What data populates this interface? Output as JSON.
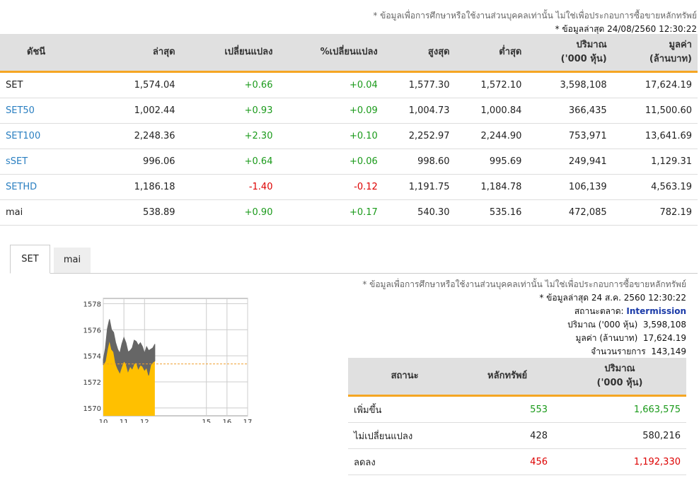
{
  "disclaimer": "* ข้อมูลเพื่อการศึกษาหรือใช้งานส่วนบุคคลเท่านั้น ไม่ใช่เพื่อประกอบการซื้อขายหลักทรัพย์",
  "last_update": "* ข้อมูลล่าสุด 24/08/2560 12:30:22",
  "index_table": {
    "headers": [
      "ดัชนี",
      "ล่าสุด",
      "เปลี่ยนแปลง",
      "%เปลี่ยนแปลง",
      "สูงสุด",
      "ต่ำสุด",
      "ปริมาณ",
      "มูลค่า"
    ],
    "header_subs": {
      "volume": "('000 หุ้น)",
      "value": "(ล้านบาท)"
    },
    "rows": [
      {
        "name": "SET",
        "last": "1,574.04",
        "change": "+0.66",
        "pct": "+0.04",
        "high": "1,577.30",
        "low": "1,572.10",
        "volume": "3,598,108",
        "value": "17,624.19",
        "link": false,
        "dir": "pos"
      },
      {
        "name": "SET50",
        "last": "1,002.44",
        "change": "+0.93",
        "pct": "+0.09",
        "high": "1,004.73",
        "low": "1,000.84",
        "volume": "366,435",
        "value": "11,500.60",
        "link": true,
        "dir": "pos"
      },
      {
        "name": "SET100",
        "last": "2,248.36",
        "change": "+2.30",
        "pct": "+0.10",
        "high": "2,252.97",
        "low": "2,244.90",
        "volume": "753,971",
        "value": "13,641.69",
        "link": true,
        "dir": "pos"
      },
      {
        "name": "sSET",
        "last": "996.06",
        "change": "+0.64",
        "pct": "+0.06",
        "high": "998.60",
        "low": "995.69",
        "volume": "249,941",
        "value": "1,129.31",
        "link": true,
        "dir": "pos"
      },
      {
        "name": "SETHD",
        "last": "1,186.18",
        "change": "-1.40",
        "pct": "-0.12",
        "high": "1,191.75",
        "low": "1,184.78",
        "volume": "106,139",
        "value": "4,563.19",
        "link": true,
        "dir": "neg"
      },
      {
        "name": "mai",
        "last": "538.89",
        "change": "+0.90",
        "pct": "+0.17",
        "high": "540.30",
        "low": "535.16",
        "volume": "472,085",
        "value": "782.19",
        "link": false,
        "dir": "pos"
      }
    ]
  },
  "tabs": [
    "SET",
    "mai"
  ],
  "status": {
    "disclaimer": "* ข้อมูลเพื่อการศึกษาหรือใช้งานส่วนบุคคลเท่านั้น ไม่ใช่เพื่อประกอบการซื้อขายหลักทรัพย์",
    "last_update": "* ข้อมูลล่าสุด 24 ส.ค. 2560 12:30:22",
    "market_status_label": "สถานะตลาด:",
    "market_status": "Intermission",
    "volume_label": "ปริมาณ ('000 หุ้น)",
    "volume": "3,598,108",
    "value_label": "มูลค่า (ล้านบาท)",
    "value": "17,624.19",
    "trades_label": "จำนวนรายการ",
    "trades": "143,149"
  },
  "breadth_table": {
    "headers": [
      "สถานะ",
      "หลักทรัพย์",
      "ปริมาณ"
    ],
    "volume_sub": "('000 หุ้น)",
    "rows": [
      {
        "label": "เพิ่มขึ้น",
        "count": "553",
        "volume": "1,663,575",
        "dir": "pos"
      },
      {
        "label": "ไม่เปลี่ยนแปลง",
        "count": "428",
        "volume": "580,216",
        "dir": "neutral"
      },
      {
        "label": "ลดลง",
        "count": "456",
        "volume": "1,192,330",
        "dir": "neg"
      }
    ]
  },
  "chart_data": {
    "type": "area",
    "y_ticks": [
      "1578",
      "1576",
      "1574",
      "1572",
      "1570"
    ],
    "x_ticks": [
      "10",
      "11",
      "12",
      "15",
      "16",
      "17"
    ],
    "ylim": [
      1569.4,
      1578.4
    ],
    "xlim": [
      10,
      17
    ],
    "reference": 1573.38,
    "x": [
      10.0,
      10.1,
      10.2,
      10.3,
      10.4,
      10.5,
      10.6,
      10.7,
      10.8,
      10.9,
      11.0,
      11.1,
      11.2,
      11.3,
      11.4,
      11.5,
      11.6,
      11.7,
      11.8,
      11.9,
      12.0,
      12.1,
      12.2,
      12.3,
      12.4,
      12.5
    ],
    "high": [
      1573.7,
      1574.6,
      1576.1,
      1576.8,
      1576.0,
      1575.8,
      1575.0,
      1574.5,
      1574.2,
      1574.9,
      1575.4,
      1575.0,
      1574.3,
      1574.4,
      1574.6,
      1575.2,
      1575.1,
      1574.8,
      1575.0,
      1574.7,
      1574.2,
      1574.7,
      1574.4,
      1574.5,
      1574.6,
      1574.9
    ],
    "low": [
      1573.3,
      1573.6,
      1574.5,
      1575.2,
      1574.5,
      1574.3,
      1573.4,
      1573.0,
      1572.7,
      1573.2,
      1573.6,
      1573.4,
      1572.8,
      1573.2,
      1573.0,
      1573.4,
      1573.5,
      1573.0,
      1573.3,
      1573.2,
      1572.9,
      1573.1,
      1572.5,
      1573.3,
      1573.5,
      1573.6
    ],
    "colors": {
      "fill": "#ffc000",
      "line": "#666666",
      "reference": "#f0a030"
    }
  }
}
